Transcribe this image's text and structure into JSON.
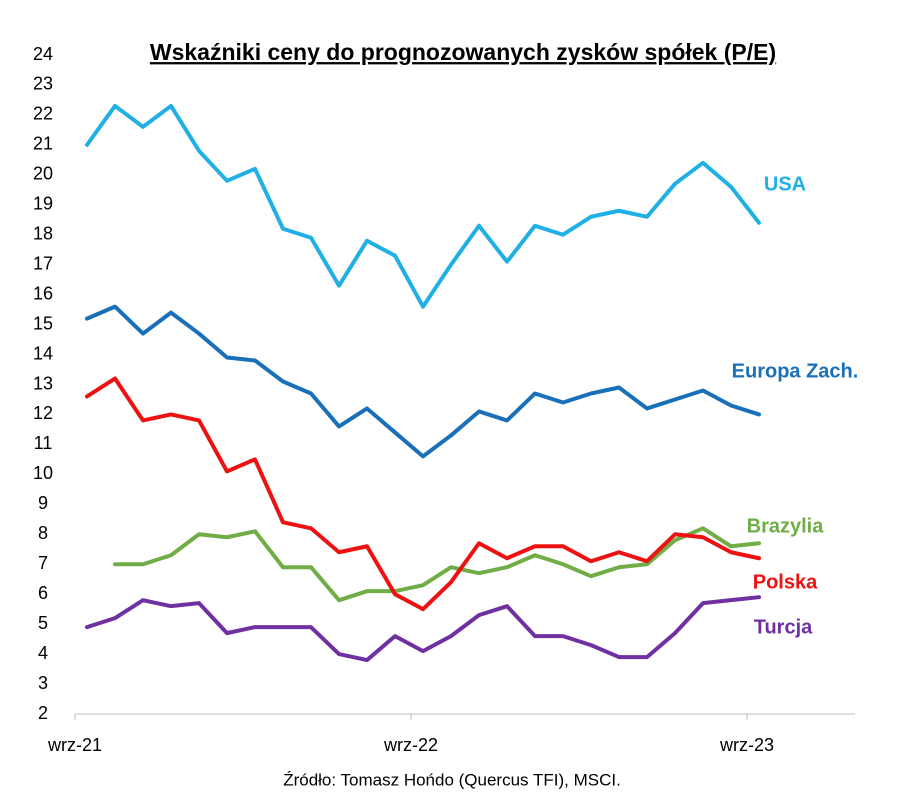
{
  "chart_data": {
    "type": "line",
    "title": "Wskaźniki ceny do prognozowanych zysków spółek (P/E)",
    "source": "Źródło: Tomasz Hońdo (Quercus TFI), MSCI.",
    "categories": [
      "wrz-21",
      null,
      null,
      null,
      null,
      null,
      null,
      null,
      null,
      null,
      null,
      null,
      "wrz-22",
      null,
      null,
      null,
      null,
      null,
      null,
      null,
      null,
      null,
      null,
      null,
      "wrz-23"
    ],
    "ylim": [
      2,
      24
    ],
    "yticks": [
      2,
      3,
      4,
      5,
      6,
      7,
      8,
      9,
      10,
      11,
      12,
      13,
      14,
      15,
      16,
      17,
      18,
      19,
      20,
      21,
      22,
      23,
      24
    ],
    "grid": false,
    "series": [
      {
        "name": "USA",
        "color": "#21b0e6",
        "values": [
          21.0,
          22.3,
          21.6,
          22.3,
          20.8,
          19.8,
          20.2,
          18.2,
          17.9,
          16.3,
          17.8,
          17.3,
          15.6,
          17.0,
          18.3,
          17.1,
          18.3,
          18.0,
          18.6,
          18.8,
          18.6,
          19.7,
          20.4,
          19.6,
          18.4
        ]
      },
      {
        "name": "Europa Zach.",
        "color": "#1a70b8",
        "values": [
          15.2,
          15.6,
          14.7,
          15.4,
          14.7,
          13.9,
          13.8,
          13.1,
          12.7,
          11.6,
          12.2,
          11.4,
          10.6,
          11.3,
          12.1,
          11.8,
          12.7,
          12.4,
          12.7,
          12.9,
          12.2,
          12.5,
          12.8,
          12.3,
          12.0
        ]
      },
      {
        "name": "Brazylia",
        "color": "#70ad47",
        "values": [
          null,
          7.0,
          7.0,
          7.3,
          8.0,
          7.9,
          8.1,
          6.9,
          6.9,
          5.8,
          6.1,
          6.1,
          6.3,
          6.9,
          6.7,
          6.9,
          7.3,
          7.0,
          6.6,
          6.9,
          7.0,
          7.8,
          8.2,
          7.6,
          7.7
        ]
      },
      {
        "name": "Polska",
        "color": "#ee1111",
        "values": [
          12.6,
          13.2,
          11.8,
          12.0,
          11.8,
          10.1,
          10.5,
          8.4,
          8.2,
          7.4,
          7.6,
          6.0,
          5.5,
          6.4,
          7.7,
          7.2,
          7.6,
          7.6,
          7.1,
          7.4,
          7.1,
          8.0,
          7.9,
          7.4,
          7.2
        ]
      },
      {
        "name": "Turcja",
        "color": "#7030a0",
        "values": [
          4.9,
          5.2,
          5.8,
          5.6,
          5.7,
          4.7,
          4.9,
          4.9,
          4.9,
          4.0,
          3.8,
          4.6,
          4.1,
          4.6,
          5.3,
          5.6,
          4.6,
          4.6,
          4.3,
          3.9,
          3.9,
          4.7,
          5.7,
          5.8,
          5.9
        ]
      }
    ]
  }
}
